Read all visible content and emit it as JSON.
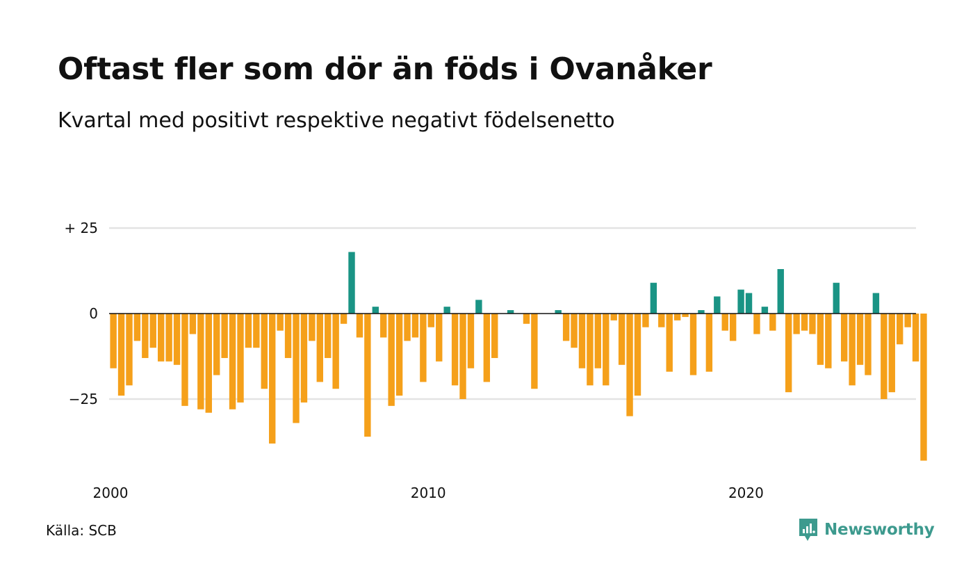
{
  "title": "Oftast fler som dör än föds i Ovanåker",
  "subtitle": "Kvartal med positivt respektive negativt födelsenetto",
  "source": "Källa: SCB",
  "brand": {
    "name": "Newsworthy",
    "icon": "newsworthy-logo-icon",
    "color": "#3d9a8e"
  },
  "colors": {
    "positive": "#1a9485",
    "negative": "#f5a01a",
    "grid": "#e3e3e3",
    "zero_line": "#111111"
  },
  "chart_data": {
    "type": "bar",
    "ylim": [
      -42,
      27
    ],
    "grid": true,
    "y_ticks": [
      {
        "value": 25,
        "label": "+ 25"
      },
      {
        "value": 0,
        "label": "0"
      },
      {
        "value": -25,
        "label": "−25"
      }
    ],
    "x_ticks": [
      {
        "value": 2000,
        "label": "2000"
      },
      {
        "value": 2010,
        "label": "2010"
      },
      {
        "value": 2020,
        "label": "2020"
      }
    ],
    "x_start": 2000,
    "period": "quarter",
    "values": [
      -16,
      -24,
      -21,
      -8,
      -13,
      -10,
      -14,
      -14,
      -15,
      -27,
      -6,
      -28,
      -29,
      -18,
      -13,
      -28,
      -26,
      -10,
      -10,
      -22,
      -38,
      -5,
      -13,
      -32,
      -26,
      -8,
      -20,
      -13,
      -22,
      -3,
      18,
      -7,
      -36,
      2,
      -7,
      -27,
      -24,
      -8,
      -7,
      -20,
      -4,
      -14,
      2,
      -21,
      -25,
      -16,
      4,
      -20,
      -13,
      0,
      1,
      0,
      -3,
      -22,
      0,
      0,
      1,
      -8,
      -10,
      -16,
      -21,
      -16,
      -21,
      -2,
      -15,
      -30,
      -24,
      -4,
      9,
      -4,
      -17,
      -2,
      -1,
      -18,
      1,
      -17,
      5,
      -5,
      -8,
      7,
      6,
      -6,
      2,
      -5,
      13,
      -23,
      -6,
      -5,
      -6,
      -15,
      -16,
      9,
      -14,
      -21,
      -15,
      -18,
      6,
      -25,
      -23,
      -9,
      -4,
      -14,
      -43
    ]
  }
}
